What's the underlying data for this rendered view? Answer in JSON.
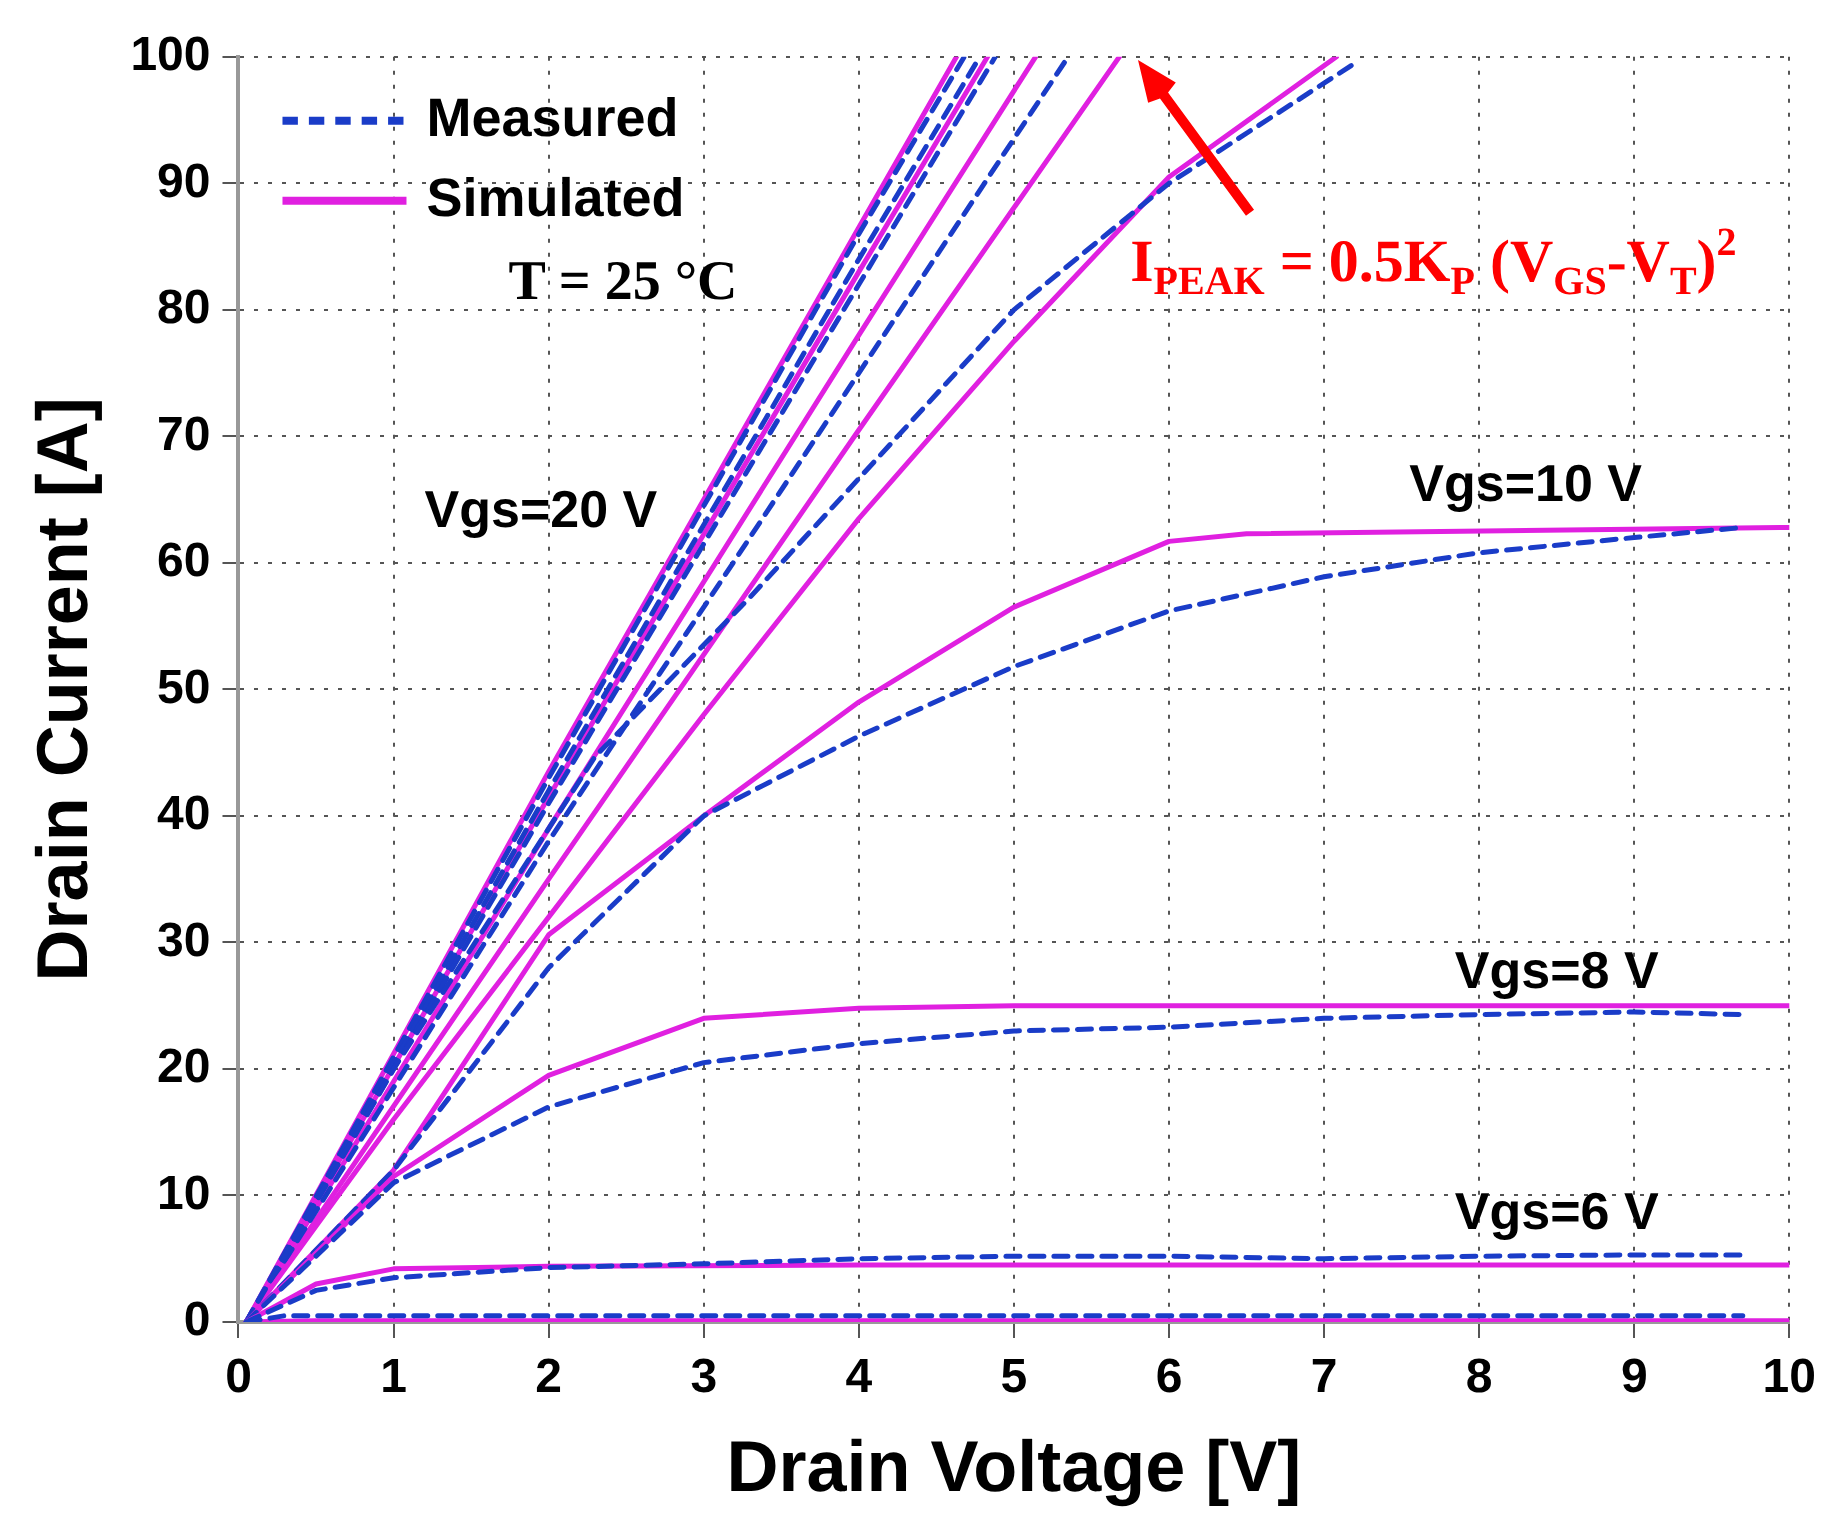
{
  "chart_data": {
    "type": "line",
    "xlabel": "Drain Voltage [V]",
    "ylabel": "Drain Current [A]",
    "xlim": [
      0,
      10
    ],
    "ylim": [
      0,
      100
    ],
    "xticks": [
      0,
      1,
      2,
      3,
      4,
      5,
      6,
      7,
      8,
      9,
      10
    ],
    "yticks": [
      0,
      10,
      20,
      30,
      40,
      50,
      60,
      70,
      80,
      90,
      100
    ],
    "grid": true,
    "legend": "top left",
    "marker": "none",
    "annotations": [
      "T = 25 °C",
      "I$_{PEAK}$ = 0.5K$_{P}$ (V$_{GS}$-V$_{T}$)$^{2}$",
      "Vgs=20 V",
      "Vgs=10 V",
      "Vgs=8 V",
      "Vgs=6 V"
    ],
    "series": [
      {
        "name": "Measured",
        "color": "#1a3cc8",
        "line_style": "dashed",
        "x": [
          0.05,
          0.3,
          2,
          4,
          6,
          8,
          9.7
        ],
        "values": [
          0,
          0.5,
          0.5,
          0.5,
          0.5,
          0.5,
          0.5
        ]
      },
      {
        "name": "Simulated",
        "color": "#e020e0",
        "line_style": "solid",
        "x": [
          0.05,
          0.5,
          1,
          2,
          5,
          10
        ],
        "values": [
          0,
          0.1,
          0.1,
          0.1,
          0.1,
          0.1
        ]
      },
      {
        "color": "#1a3cc8",
        "line_style": "dashed",
        "x": [
          0.05,
          0.5,
          1,
          2,
          3,
          4,
          5,
          6,
          7,
          8,
          9,
          9.7
        ],
        "values": [
          0,
          2.5,
          3.5,
          4.3,
          4.6,
          5,
          5.2,
          5.2,
          5,
          5.2,
          5.3,
          5.3
        ]
      },
      {
        "color": "#e020e0",
        "line_style": "solid",
        "x": [
          0.05,
          0.5,
          1,
          2,
          4,
          10
        ],
        "values": [
          0,
          3,
          4.2,
          4.4,
          4.5,
          4.5
        ]
      },
      {
        "color": "#1a3cc8",
        "line_style": "dashed",
        "x": [
          0.05,
          1,
          2,
          3,
          4,
          5,
          6,
          7,
          8,
          9,
          9.7
        ],
        "values": [
          0,
          11,
          17,
          20.5,
          22,
          23,
          23.3,
          24,
          24.3,
          24.5,
          24.3
        ]
      },
      {
        "color": "#e020e0",
        "line_style": "solid",
        "x": [
          0.05,
          1,
          2,
          3,
          4,
          5,
          10
        ],
        "values": [
          0,
          11.5,
          19.5,
          24,
          24.8,
          25,
          25
        ]
      },
      {
        "color": "#1a3cc8",
        "line_style": "dashed",
        "x": [
          0.05,
          1,
          2,
          3,
          4,
          5,
          6,
          7,
          8,
          9,
          9.7
        ],
        "values": [
          0,
          12,
          28,
          40,
          46.3,
          51.8,
          56.2,
          58.9,
          60.8,
          62,
          62.8
        ]
      },
      {
        "color": "#e020e0",
        "line_style": "solid",
        "x": [
          0.05,
          1,
          2,
          3,
          4,
          5,
          6,
          6.5,
          10
        ],
        "values": [
          0,
          12,
          30.6,
          40,
          49,
          56.5,
          61.7,
          62.3,
          62.8
        ]
      },
      {
        "color": "#1a3cc8",
        "line_style": "dashed",
        "x": [
          0.05,
          1,
          2.3,
          3.3,
          4.1,
          5,
          6,
          7.2
        ],
        "values": [
          0,
          20,
          44.7,
          57.3,
          68,
          80,
          90,
          99.5
        ]
      },
      {
        "color": "#e020e0",
        "line_style": "solid",
        "x": [
          0.05,
          1,
          2,
          3,
          4,
          5,
          6,
          7.08
        ],
        "values": [
          0,
          16,
          32,
          48,
          63.5,
          77.5,
          90.5,
          100
        ]
      },
      {
        "color": "#1a3cc8",
        "line_style": "dashed",
        "x": [
          0.05,
          2,
          4,
          5.35
        ],
        "values": [
          0,
          38,
          75,
          100
        ]
      },
      {
        "color": "#e020e0",
        "line_style": "solid",
        "x": [
          0.05,
          2,
          4,
          5.68
        ],
        "values": [
          0,
          35,
          70.5,
          100
        ]
      },
      {
        "color": "#1a3cc8",
        "line_style": "dashed",
        "x": [
          0.05,
          2,
          4,
          4.88
        ],
        "values": [
          0,
          41,
          82,
          100
        ]
      },
      {
        "color": "#e020e0",
        "line_style": "solid",
        "x": [
          0.05,
          2,
          4,
          5.14
        ],
        "values": [
          0,
          39,
          78,
          100
        ]
      },
      {
        "color": "#1a3cc8",
        "line_style": "dashed",
        "x": [
          0.05,
          2,
          4,
          4.78
        ],
        "values": [
          0,
          42,
          84,
          100
        ]
      },
      {
        "color": "#e020e0",
        "line_style": "solid",
        "x": [
          0.05,
          2,
          4,
          4.83
        ],
        "values": [
          0,
          41.5,
          83,
          100
        ]
      },
      {
        "color": "#1a3cc8",
        "line_style": "dashed",
        "x": [
          0.05,
          2,
          4,
          4.68
        ],
        "values": [
          0,
          43,
          86,
          100
        ]
      },
      {
        "color": "#e020e0",
        "line_style": "solid",
        "x": [
          0.05,
          2,
          4,
          4.63
        ],
        "values": [
          0,
          43.5,
          86.5,
          100
        ]
      }
    ]
  }
}
